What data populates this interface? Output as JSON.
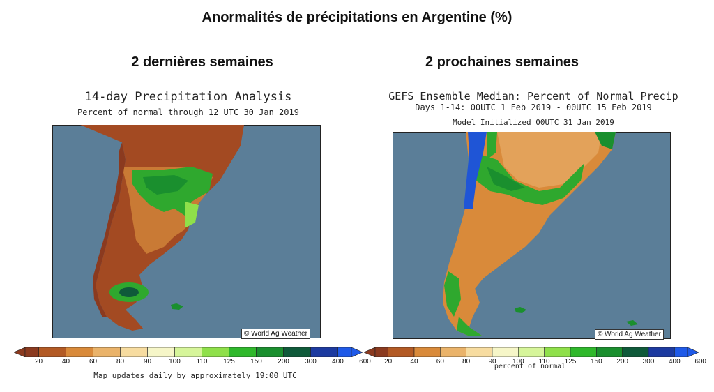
{
  "title": "Anormalités de précipitations en Argentine (%)",
  "left_panel": {
    "heading": "2 dernières semaines",
    "map_title": "14-day Precipitation Analysis",
    "map_subtitle": "Percent of normal through 12 UTC 30 Jan 2019",
    "credit": "© World Ag Weather",
    "footer": "Map updates daily by approximately 19:00 UTC"
  },
  "right_panel": {
    "heading": "2 prochaines semaines",
    "map_title": "GEFS Ensemble Median: Percent of Normal Precip",
    "map_subtitle": "Days 1-14: 00UTC 1 Feb 2019 - 00UTC 15 Feb 2019",
    "map_init": "Model Initialized 00UTC 31 Jan 2019",
    "credit": "© World Ag Weather",
    "footer": "percent of normal"
  },
  "legend": {
    "labels": [
      "20",
      "40",
      "60",
      "80",
      "90",
      "100",
      "110",
      "125",
      "150",
      "200",
      "300",
      "400",
      "600"
    ],
    "colors": [
      "#8b3a1f",
      "#b35a24",
      "#d98a3a",
      "#eab36a",
      "#f7dca0",
      "#f6f6c8",
      "#d6f59a",
      "#8fe04a",
      "#2fb82b",
      "#1a8f2e",
      "#0f5a3a",
      "#1c3aa0",
      "#1f5ae8"
    ]
  },
  "colors": {
    "ocean": "#5b7e98",
    "land_dry": "#a34a22",
    "land_mid": "#c97a35",
    "land_wet": "#2fa82e",
    "chile_wet": "#1f55d6"
  }
}
